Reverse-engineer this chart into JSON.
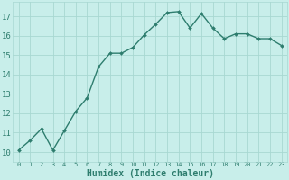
{
  "x": [
    0,
    1,
    2,
    3,
    4,
    5,
    6,
    7,
    8,
    9,
    10,
    11,
    12,
    13,
    14,
    15,
    16,
    17,
    18,
    19,
    20,
    21,
    22,
    23
  ],
  "y": [
    10.1,
    10.6,
    11.2,
    10.1,
    11.1,
    12.1,
    12.8,
    14.4,
    15.1,
    15.1,
    15.4,
    16.05,
    16.6,
    17.2,
    17.25,
    16.4,
    17.15,
    16.4,
    15.85,
    16.1,
    16.1,
    15.85,
    15.85,
    15.5
  ],
  "line_color": "#2e7d6e",
  "marker": "D",
  "marker_size": 2.0,
  "linewidth": 1.0,
  "xlabel": "Humidex (Indice chaleur)",
  "xlabel_fontsize": 7,
  "xlim": [
    -0.5,
    23.5
  ],
  "ylim": [
    9.5,
    17.75
  ],
  "yticks": [
    10,
    11,
    12,
    13,
    14,
    15,
    16,
    17
  ],
  "xticks": [
    0,
    1,
    2,
    3,
    4,
    5,
    6,
    7,
    8,
    9,
    10,
    11,
    12,
    13,
    14,
    15,
    16,
    17,
    18,
    19,
    20,
    21,
    22,
    23
  ],
  "xtick_fontsize": 5.0,
  "ytick_fontsize": 6.5,
  "background_color": "#c8eeea",
  "grid_color": "#a8d8d2",
  "tick_color": "#2e7d6e"
}
